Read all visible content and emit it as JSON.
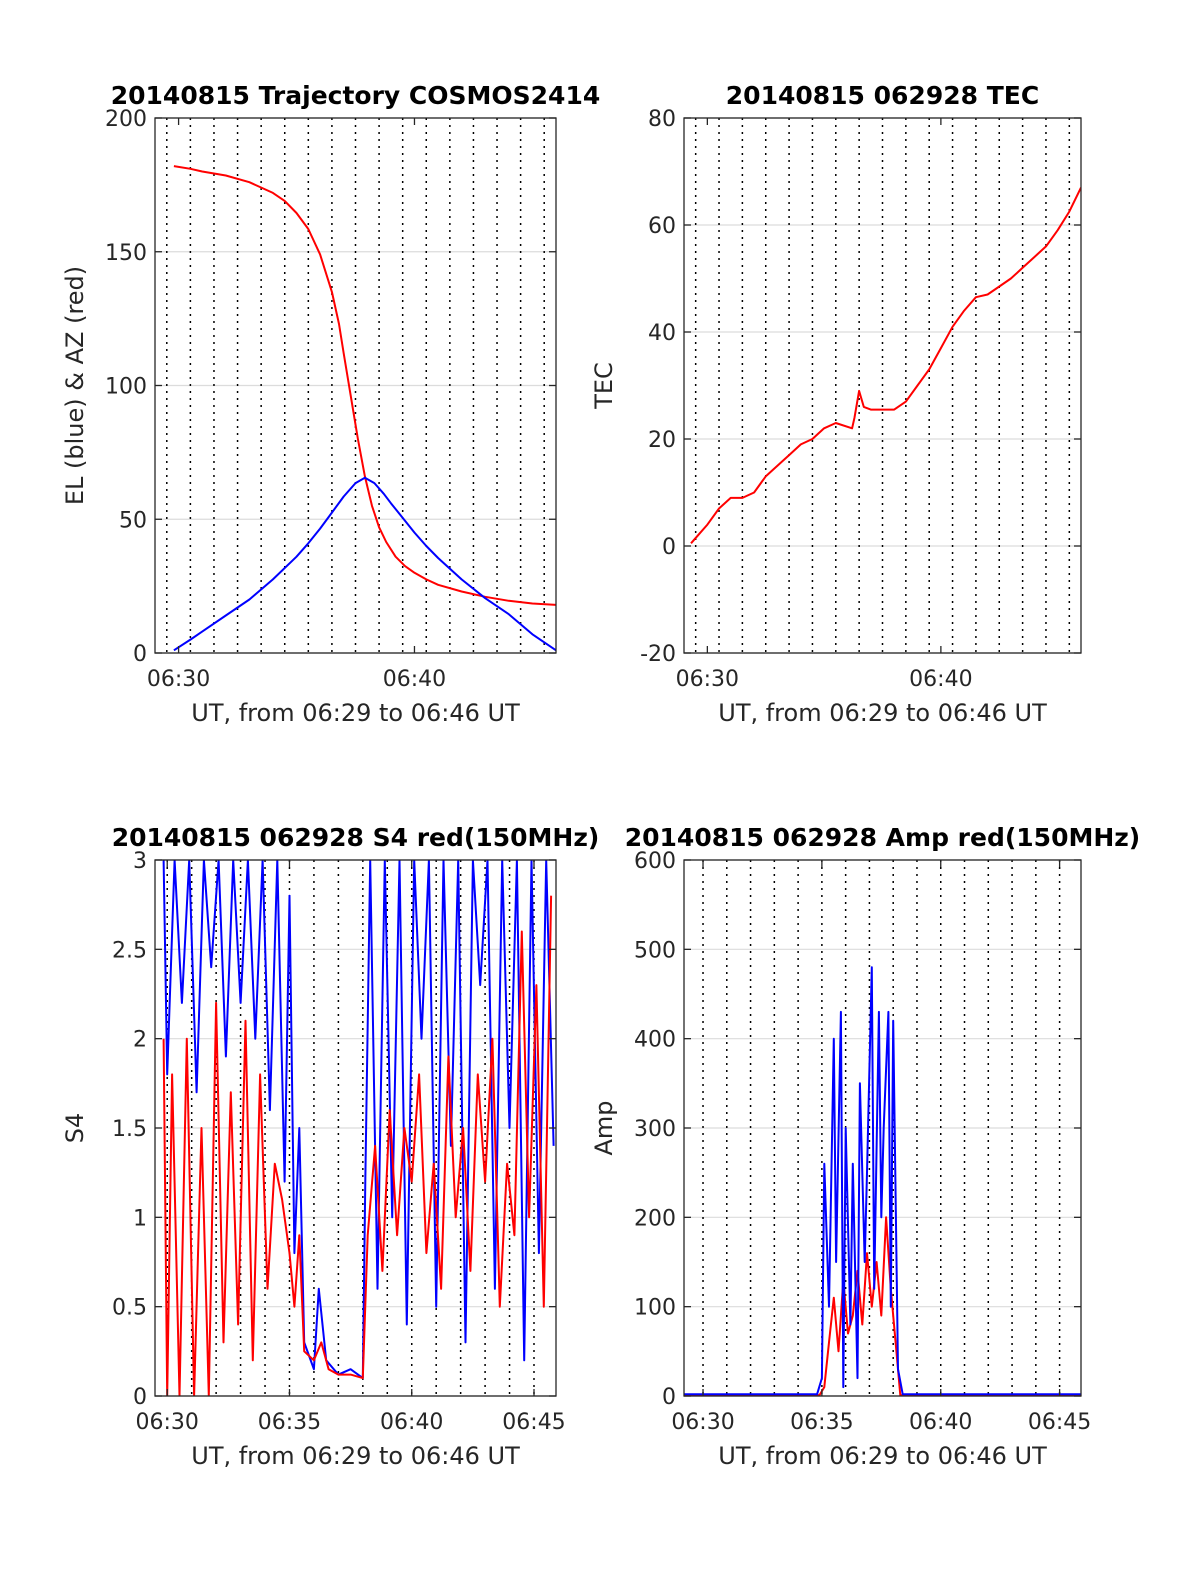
{
  "colors": {
    "red": "#ff0000",
    "blue": "#0000ff",
    "axis": "#262626",
    "grid": "#dcdcdc",
    "vline": "#000000"
  },
  "chart_data": [
    {
      "id": "trajectory",
      "type": "line",
      "title": "20140815 Trajectory COSMOS2414",
      "xlabel": "UT, from 06:29 to 06:46 UT",
      "ylabel": "EL (blue) & AZ (red)",
      "xlim": [
        29,
        46
      ],
      "ylim": [
        0,
        200
      ],
      "xticks": [
        30,
        40
      ],
      "xticklabels": [
        "06:30",
        "06:40"
      ],
      "yticks": [
        0,
        50,
        100,
        150,
        200
      ],
      "yticklabels": [
        "0",
        "50",
        "100",
        "150",
        "200"
      ],
      "vlines": [
        29.5,
        30.5,
        31.5,
        32.5,
        33.5,
        34.5,
        35.5,
        36.5,
        37.5,
        38.5,
        39.5,
        40.5,
        41.5,
        42.5,
        43.5,
        44.5,
        45.5
      ],
      "grid": true,
      "series": [
        {
          "color": "red",
          "x": [
            29.8,
            30.5,
            31,
            32,
            33,
            34,
            34.5,
            35,
            35.5,
            36,
            36.5,
            36.8,
            37,
            37.3,
            37.6,
            37.9,
            38.2,
            38.5,
            38.8,
            39.2,
            39.6,
            40,
            40.5,
            41,
            42,
            43,
            44,
            45,
            46
          ],
          "y": [
            182,
            181,
            180,
            178.5,
            176,
            172,
            169,
            164.5,
            158.5,
            149,
            135,
            123,
            112,
            96,
            80,
            66,
            55,
            47,
            41.5,
            36,
            32.5,
            30,
            27.5,
            25.5,
            23,
            21,
            19.5,
            18.5,
            18
          ]
        },
        {
          "color": "blue",
          "x": [
            29.8,
            30.5,
            31,
            32,
            33,
            34,
            35,
            35.5,
            36,
            36.5,
            37,
            37.5,
            37.9,
            38.3,
            38.7,
            39,
            39.5,
            40,
            40.5,
            41,
            42,
            43,
            44,
            45,
            46
          ],
          "y": [
            1,
            5,
            8,
            14,
            20,
            27.5,
            36,
            41,
            46.5,
            52.5,
            58.5,
            63.5,
            65.5,
            63.5,
            59.5,
            56,
            50.5,
            45,
            40,
            35.5,
            27.5,
            20.5,
            14.5,
            7,
            1
          ]
        }
      ]
    },
    {
      "id": "tec",
      "type": "line",
      "title": "20140815 062928 TEC",
      "xlabel": "UT, from 06:29 to 06:46 UT",
      "ylabel": "TEC",
      "xlim": [
        29,
        46
      ],
      "ylim": [
        -20,
        80
      ],
      "xticks": [
        30,
        40
      ],
      "xticklabels": [
        "06:30",
        "06:40"
      ],
      "yticks": [
        -20,
        0,
        20,
        40,
        60,
        80
      ],
      "yticklabels": [
        "-20",
        "0",
        "20",
        "40",
        "60",
        "80"
      ],
      "vlines": [
        29.5,
        30.5,
        31.5,
        32.5,
        33.5,
        34.5,
        35.5,
        36.5,
        37.5,
        38.5,
        39.5,
        40.5,
        41.5,
        42.5,
        43.5,
        44.5,
        45.5
      ],
      "grid": true,
      "series": [
        {
          "color": "red",
          "x": [
            29.3,
            29.6,
            30,
            30.5,
            31,
            31.5,
            32,
            32.5,
            33,
            33.5,
            34,
            34.5,
            35,
            35.5,
            36.2,
            36.3,
            36.5,
            36.7,
            37,
            37.5,
            38,
            38.5,
            39,
            39.5,
            40,
            40.5,
            41,
            41.5,
            42,
            42.5,
            43,
            43.5,
            44,
            44.5,
            45,
            45.5,
            46
          ],
          "y": [
            0.5,
            2,
            4,
            7,
            9,
            9,
            10,
            13,
            15,
            17,
            19,
            20,
            22,
            23,
            22,
            24,
            29,
            26,
            25.5,
            25.5,
            25.5,
            27,
            30,
            33,
            37,
            41,
            44,
            46.5,
            47,
            48.5,
            50,
            52,
            54,
            56,
            59,
            62.5,
            67
          ]
        }
      ]
    },
    {
      "id": "s4",
      "type": "line",
      "title": "20140815 062928 S4 red(150MHz)",
      "xlabel": "UT, from 06:29 to 06:46 UT",
      "ylabel": "S4",
      "xlim": [
        29.5,
        45.9
      ],
      "ylim": [
        0,
        3
      ],
      "xticks": [
        30,
        35,
        40,
        45
      ],
      "xticklabels": [
        "06:30",
        "06:35",
        "06:40",
        "06:45"
      ],
      "yticks": [
        0,
        0.5,
        1,
        1.5,
        2,
        2.5,
        3
      ],
      "yticklabels": [
        "0",
        "0.5",
        "1",
        "1.5",
        "2",
        "2.5",
        "3"
      ],
      "vlines": [
        30,
        31,
        32,
        33,
        34,
        35,
        36,
        37,
        38,
        39,
        40,
        41,
        42,
        43,
        44,
        45
      ],
      "grid": true,
      "series": [
        {
          "color": "blue",
          "x": [
            29.85,
            30,
            30.3,
            30.6,
            30.9,
            31.2,
            31.5,
            31.8,
            32.1,
            32.4,
            32.7,
            33,
            33.3,
            33.6,
            33.9,
            34.2,
            34.5,
            34.8,
            35,
            35.2,
            35.4,
            35.6,
            36,
            36.2,
            36.5,
            37,
            37.5,
            38,
            38.1,
            38.3,
            38.6,
            38.9,
            39.2,
            39.5,
            39.8,
            40.1,
            40.4,
            40.7,
            41,
            41.3,
            41.6,
            41.9,
            42.2,
            42.5,
            42.8,
            43.1,
            43.4,
            43.7,
            44,
            44.3,
            44.6,
            44.9,
            45.2,
            45.5,
            45.8
          ],
          "y": [
            3,
            1.8,
            3,
            2.2,
            3,
            1.7,
            3,
            2.4,
            3,
            1.9,
            3,
            2.2,
            3,
            2.0,
            3,
            1.6,
            3,
            1.2,
            2.8,
            0.8,
            1.5,
            0.3,
            0.15,
            0.6,
            0.2,
            0.12,
            0.15,
            0.1,
            1.2,
            3,
            0.6,
            3,
            1.0,
            3,
            0.4,
            3,
            2.0,
            3,
            0.5,
            3,
            1.4,
            3,
            0.3,
            3,
            2.3,
            3,
            0.6,
            3,
            1.5,
            3,
            0.2,
            3,
            0.8,
            3,
            1.4
          ]
        },
        {
          "color": "red",
          "x": [
            29.85,
            30,
            30.2,
            30.5,
            30.8,
            31.1,
            31.4,
            31.7,
            32,
            32.3,
            32.6,
            32.9,
            33.2,
            33.5,
            33.8,
            34.1,
            34.4,
            34.7,
            35,
            35.2,
            35.4,
            35.6,
            36,
            36.3,
            36.6,
            37,
            37.5,
            38,
            38.2,
            38.5,
            38.8,
            39.1,
            39.4,
            39.7,
            40,
            40.3,
            40.6,
            40.9,
            41.2,
            41.5,
            41.8,
            42.1,
            42.4,
            42.7,
            43,
            43.3,
            43.6,
            43.9,
            44.2,
            44.5,
            44.8,
            45.1,
            45.4,
            45.7
          ],
          "y": [
            2.0,
            0,
            1.8,
            0,
            2.0,
            0,
            1.5,
            0,
            2.2,
            0.3,
            1.7,
            0.4,
            2.1,
            0.2,
            1.8,
            0.6,
            1.3,
            1.1,
            0.8,
            0.5,
            0.9,
            0.25,
            0.2,
            0.3,
            0.15,
            0.12,
            0.12,
            0.1,
            0.9,
            1.4,
            0.7,
            1.6,
            0.9,
            1.5,
            1.2,
            1.8,
            0.8,
            1.3,
            0.6,
            1.9,
            1.0,
            1.5,
            0.7,
            1.8,
            1.2,
            2.0,
            0.5,
            1.3,
            0.9,
            2.6,
            1.0,
            2.3,
            0.5,
            2.8
          ]
        }
      ]
    },
    {
      "id": "amp",
      "type": "line",
      "title": "20140815 062928 Amp red(150MHz)",
      "xlabel": "UT, from 06:29 to 06:46 UT",
      "ylabel": "Amp",
      "xlim": [
        29.2,
        45.9
      ],
      "ylim": [
        0,
        600
      ],
      "xticks": [
        30,
        35,
        40,
        45
      ],
      "xticklabels": [
        "06:30",
        "06:35",
        "06:40",
        "06:45"
      ],
      "yticks": [
        0,
        100,
        200,
        300,
        400,
        500,
        600
      ],
      "yticklabels": [
        "0",
        "100",
        "200",
        "300",
        "400",
        "500",
        "600"
      ],
      "vlines": [
        30,
        31,
        32,
        33,
        34,
        35,
        36,
        37,
        38,
        39,
        40,
        41,
        42,
        43,
        44,
        45
      ],
      "grid": true,
      "series": [
        {
          "color": "red",
          "x": [
            29.2,
            34.9,
            35.1,
            35.3,
            35.5,
            35.7,
            35.9,
            36.1,
            36.3,
            36.5,
            36.7,
            36.9,
            37.1,
            37.3,
            37.5,
            37.7,
            37.9,
            38.1,
            38.3,
            45.9
          ],
          "y": [
            1,
            1,
            10,
            60,
            110,
            50,
            130,
            70,
            90,
            140,
            80,
            160,
            100,
            150,
            90,
            200,
            120,
            60,
            1,
            1
          ]
        },
        {
          "color": "blue",
          "x": [
            29.2,
            34.8,
            35.0,
            35.1,
            35.3,
            35.5,
            35.6,
            35.8,
            35.9,
            36.0,
            36.2,
            36.3,
            36.5,
            36.6,
            36.8,
            36.9,
            37.1,
            37.2,
            37.4,
            37.5,
            37.6,
            37.8,
            37.9,
            38.0,
            38.2,
            38.4,
            45.9
          ],
          "y": [
            2,
            2,
            20,
            260,
            100,
            400,
            150,
            430,
            10,
            300,
            80,
            260,
            20,
            350,
            150,
            250,
            480,
            120,
            430,
            200,
            300,
            430,
            100,
            420,
            30,
            2,
            2
          ]
        }
      ]
    }
  ]
}
